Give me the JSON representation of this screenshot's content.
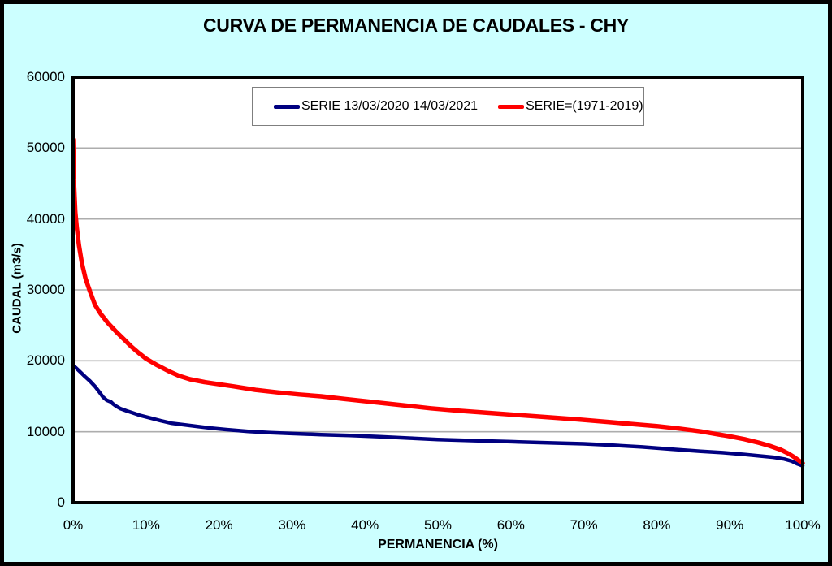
{
  "chart_data": {
    "type": "line",
    "title": "CURVA DE PERMANENCIA DE CAUDALES - CHY",
    "xlabel": "PERMANENCIA (%)",
    "ylabel": "CAUDAL (m3/s)",
    "xlim": [
      0,
      100
    ],
    "ylim": [
      0,
      60000
    ],
    "grid": "horizontal",
    "legend_position": "top-center",
    "x_tick_values": [
      0,
      10,
      20,
      30,
      40,
      50,
      60,
      70,
      80,
      90,
      100
    ],
    "x_tick_labels": [
      "0%",
      "10%",
      "20%",
      "30%",
      "40%",
      "50%",
      "60%",
      "70%",
      "80%",
      "90%",
      "100%"
    ],
    "y_tick_values": [
      0,
      10000,
      20000,
      30000,
      40000,
      50000,
      60000
    ],
    "y_tick_labels": [
      "0",
      "10000",
      "20000",
      "30000",
      "40000",
      "50000",
      "60000"
    ],
    "colors": {
      "background": "#CCFFFF",
      "plot_background": "#FFFFFF",
      "frame": "#000000",
      "gridline": "#ADADAD",
      "legend_border": "#7F7F7F",
      "series_blue": "#000080",
      "series_red": "#FF0000"
    },
    "series": [
      {
        "name": "SERIE 13/03/2020 14/03/2021",
        "color": "#000080",
        "points": [
          [
            0,
            19300
          ],
          [
            0.4,
            19000
          ],
          [
            0.9,
            18500
          ],
          [
            1.6,
            17800
          ],
          [
            2.3,
            17150
          ],
          [
            3,
            16400
          ],
          [
            3.6,
            15600
          ],
          [
            4.1,
            14900
          ],
          [
            4.6,
            14450
          ],
          [
            5.2,
            14200
          ],
          [
            5.5,
            13900
          ],
          [
            5.9,
            13600
          ],
          [
            6.5,
            13250
          ],
          [
            7.3,
            12950
          ],
          [
            8.2,
            12650
          ],
          [
            9.2,
            12300
          ],
          [
            10.5,
            11950
          ],
          [
            12,
            11550
          ],
          [
            13.5,
            11200
          ],
          [
            15,
            11000
          ],
          [
            17,
            10750
          ],
          [
            19,
            10500
          ],
          [
            21,
            10300
          ],
          [
            24,
            10050
          ],
          [
            27,
            9880
          ],
          [
            30,
            9750
          ],
          [
            34,
            9600
          ],
          [
            38,
            9480
          ],
          [
            42,
            9300
          ],
          [
            46,
            9100
          ],
          [
            50,
            8900
          ],
          [
            55,
            8750
          ],
          [
            60,
            8600
          ],
          [
            65,
            8450
          ],
          [
            70,
            8300
          ],
          [
            74,
            8100
          ],
          [
            78,
            7850
          ],
          [
            82,
            7550
          ],
          [
            86,
            7250
          ],
          [
            89,
            7050
          ],
          [
            92,
            6800
          ],
          [
            94,
            6600
          ],
          [
            96,
            6400
          ],
          [
            97.5,
            6150
          ],
          [
            98.5,
            5850
          ],
          [
            99.2,
            5500
          ],
          [
            99.7,
            5300
          ],
          [
            100,
            5200
          ]
        ]
      },
      {
        "name": "SERIE=(1971-2019)",
        "color": "#FF0000",
        "points": [
          [
            0,
            51200
          ],
          [
            0.1,
            45500
          ],
          [
            0.3,
            41000
          ],
          [
            0.5,
            38800
          ],
          [
            0.8,
            36300
          ],
          [
            1.2,
            33800
          ],
          [
            1.7,
            31600
          ],
          [
            2.3,
            29800
          ],
          [
            3,
            27900
          ],
          [
            3.8,
            26600
          ],
          [
            4.8,
            25300
          ],
          [
            6,
            24000
          ],
          [
            7,
            23000
          ],
          [
            8,
            22000
          ],
          [
            9,
            21100
          ],
          [
            10,
            20300
          ],
          [
            11.5,
            19400
          ],
          [
            13,
            18600
          ],
          [
            14.5,
            17900
          ],
          [
            16,
            17400
          ],
          [
            18,
            17000
          ],
          [
            20,
            16700
          ],
          [
            22,
            16400
          ],
          [
            25,
            15900
          ],
          [
            28,
            15550
          ],
          [
            31,
            15250
          ],
          [
            34,
            15000
          ],
          [
            37,
            14650
          ],
          [
            41,
            14200
          ],
          [
            45,
            13750
          ],
          [
            49,
            13300
          ],
          [
            53,
            12950
          ],
          [
            57,
            12650
          ],
          [
            61,
            12350
          ],
          [
            65,
            12050
          ],
          [
            69,
            11750
          ],
          [
            73,
            11400
          ],
          [
            77,
            11050
          ],
          [
            80,
            10800
          ],
          [
            83,
            10450
          ],
          [
            86,
            10050
          ],
          [
            88,
            9700
          ],
          [
            90,
            9350
          ],
          [
            92,
            8950
          ],
          [
            94,
            8450
          ],
          [
            95.5,
            8000
          ],
          [
            97,
            7450
          ],
          [
            98,
            6950
          ],
          [
            98.8,
            6450
          ],
          [
            99.4,
            6000
          ],
          [
            99.8,
            5700
          ],
          [
            100,
            5550
          ]
        ]
      }
    ]
  }
}
